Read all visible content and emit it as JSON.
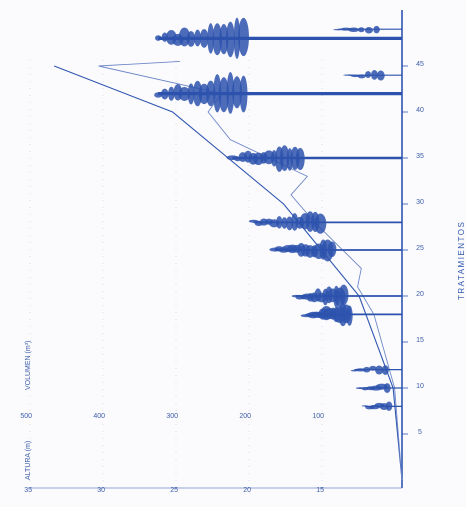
{
  "diagram": {
    "orientation": "rotated-90-ccw",
    "colors": {
      "ink": "#2f56b0",
      "ink_light": "#6e88c8",
      "tree": "#2d52ad",
      "background": "#fbfbfd"
    },
    "axis_left": {
      "label": "ALTURA (m)",
      "ticks": [
        "35",
        "30",
        "25",
        "20",
        "15"
      ]
    },
    "axis_right": {
      "label": "VOLUMEN (m³)",
      "ticks": [
        "500",
        "400",
        "300",
        "200",
        "100"
      ]
    },
    "bottom_axis": {
      "title": "TRATAMIENTOS",
      "ticks": [
        "5",
        "10",
        "15",
        "20",
        "25",
        "30",
        "35",
        "40",
        "45"
      ]
    },
    "curves": [
      {
        "name": "curva-volumen-total",
        "points": [
          [
            0,
            0
          ],
          [
            10,
            12
          ],
          [
            20,
            58
          ],
          [
            30,
            160
          ],
          [
            40,
            310
          ],
          [
            45,
            470
          ]
        ]
      },
      {
        "name": "curva-volumen-extraido",
        "points": [
          [
            0,
            0
          ],
          [
            10,
            10
          ],
          [
            18,
            38
          ],
          [
            21,
            60
          ],
          [
            23,
            55
          ],
          [
            28,
            118
          ],
          [
            31,
            150
          ],
          [
            33,
            128
          ],
          [
            37,
            232
          ],
          [
            40,
            262
          ],
          [
            42,
            244
          ],
          [
            45,
            410
          ],
          [
            45.5,
            300
          ]
        ]
      }
    ],
    "trees": [
      {
        "age": 8,
        "height": 3.5,
        "crown": 0.35,
        "size": "s"
      },
      {
        "age": 10,
        "height": 4,
        "crown": 0.35,
        "size": "s"
      },
      {
        "age": 12,
        "height": 4.5,
        "crown": 0.35,
        "size": "s"
      },
      {
        "age": 18,
        "height": 9,
        "crown": 0.55,
        "size": "m"
      },
      {
        "age": 20,
        "height": 10,
        "crown": 0.55,
        "size": "m"
      },
      {
        "age": 25,
        "height": 12,
        "crown": 0.55,
        "size": "m"
      },
      {
        "age": 28,
        "height": 14,
        "crown": 0.55,
        "size": "m"
      },
      {
        "age": 35,
        "height": 16,
        "crown": 0.6,
        "size": "l"
      },
      {
        "age": 42,
        "height": 23,
        "crown": 0.65,
        "size": "xl"
      },
      {
        "age": 48,
        "height": 23,
        "crown": 0.65,
        "size": "xl"
      },
      {
        "age": 44,
        "height": 5,
        "crown": 0.4,
        "size": "s"
      },
      {
        "age": 49,
        "height": 6,
        "crown": 0.4,
        "size": "s"
      }
    ]
  }
}
